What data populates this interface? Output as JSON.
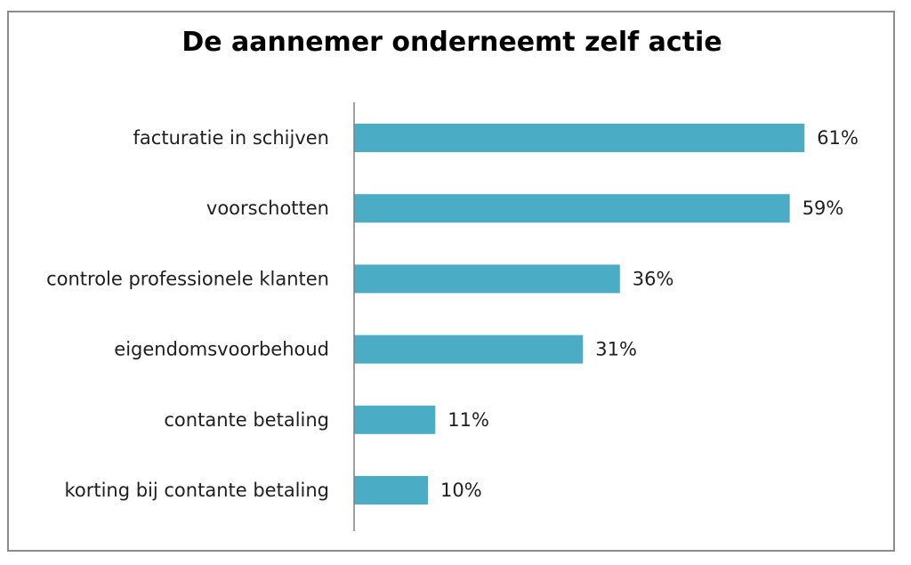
{
  "chart_data": {
    "type": "bar",
    "orientation": "horizontal",
    "title": "De aannemer onderneemt zelf actie",
    "categories": [
      "facturatie in schijven",
      "voorschotten",
      "controle professionele klanten",
      "eigendomsvoorbehoud",
      "contante betaling",
      "korting bij contante betaling"
    ],
    "values": [
      61,
      59,
      36,
      31,
      11,
      10
    ],
    "data_labels": [
      "61%",
      "59%",
      "36%",
      "31%",
      "11%",
      "10%"
    ],
    "unit": "%",
    "xlim": [
      0,
      65
    ],
    "grid": false,
    "legend": "none",
    "bar_color": "#4bacc6",
    "axis_color": "#7f7f7f"
  }
}
